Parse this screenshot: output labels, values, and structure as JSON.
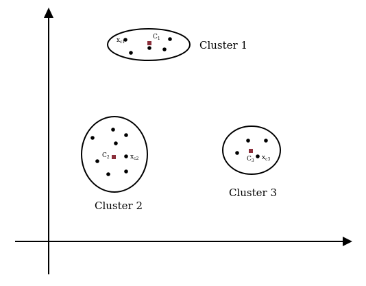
{
  "clusters": [
    {
      "label": "Cluster 1",
      "centroid_label": "C",
      "centroid_sub": "1",
      "point_label": "x",
      "point_sub": "c1"
    },
    {
      "label": "Cluster 2",
      "centroid_label": "C",
      "centroid_sub": "2",
      "point_label": "x",
      "point_sub": "c2"
    },
    {
      "label": "Cluster 3",
      "centroid_label": "C",
      "centroid_sub": "3",
      "point_label": "x",
      "point_sub": "c3"
    }
  ],
  "colors": {
    "centroid": "#8b2e3a",
    "point": "#000000",
    "line": "#000000"
  }
}
